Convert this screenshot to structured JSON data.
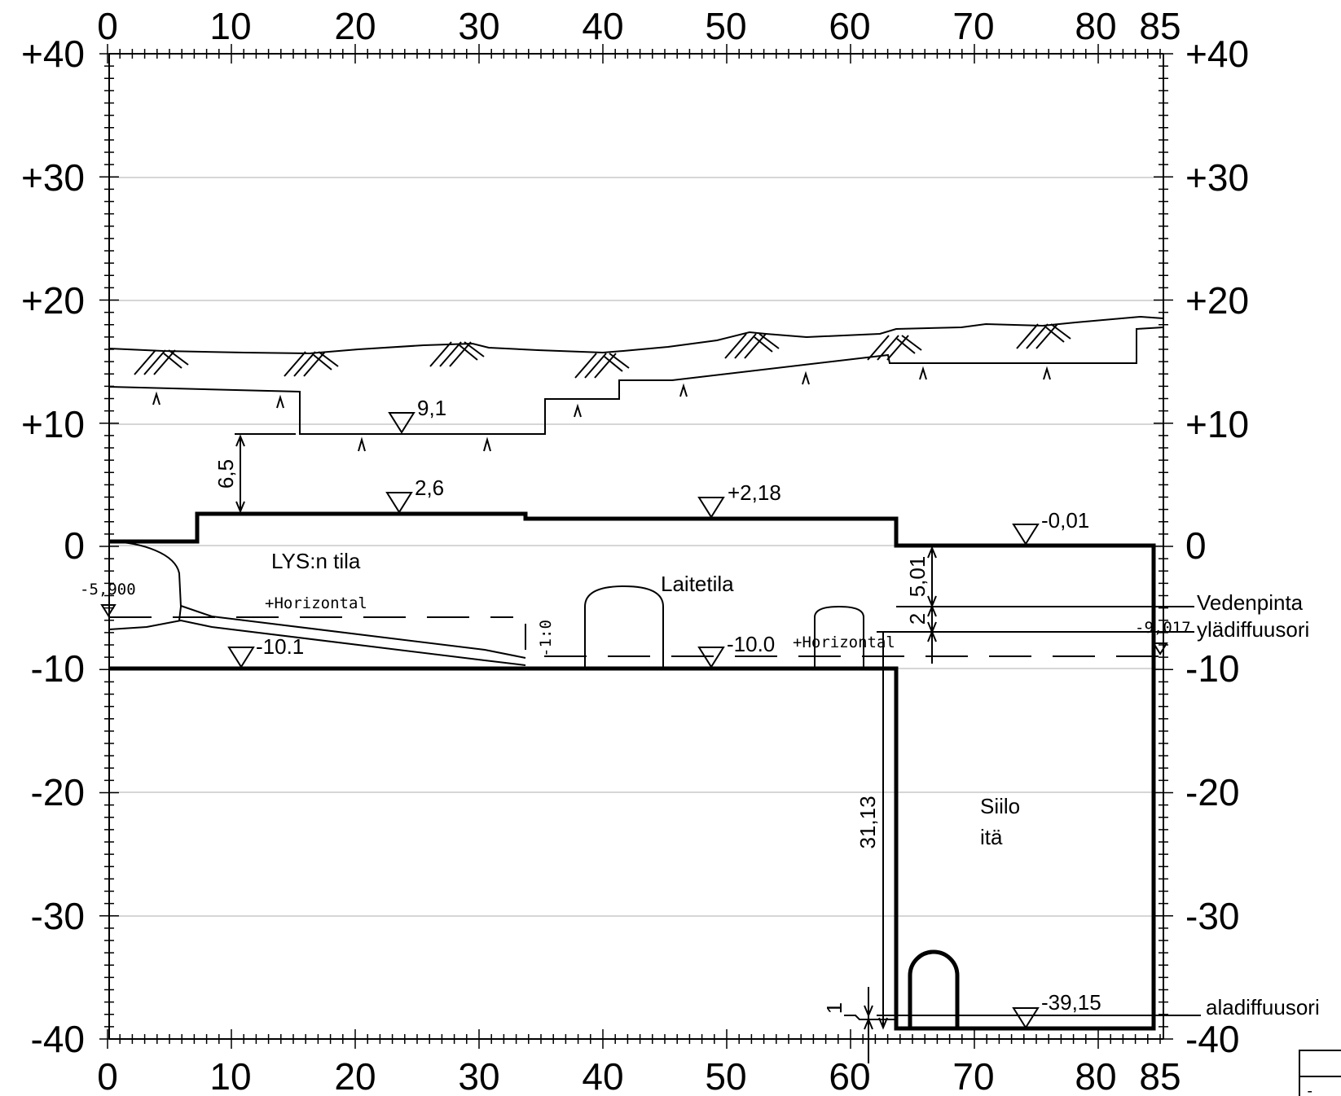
{
  "x_axis": {
    "ticks": [
      "0",
      "10",
      "20",
      "30",
      "40",
      "50",
      "60",
      "70",
      "80",
      "85"
    ]
  },
  "y_axis": {
    "ticks": [
      "+40",
      "+30",
      "+20",
      "+10",
      "0",
      "-10",
      "-20",
      "-30",
      "-40"
    ]
  },
  "spaces": {
    "lys": "LYS:n tila",
    "laitetila": "Laitetila",
    "siilo_line1": "Siilo",
    "siilo_line2": "itä"
  },
  "elevations": {
    "e91": "9,1",
    "e26": "2,6",
    "e218": "+2,18",
    "e001": "-0,01",
    "e101": "-10.1",
    "e100": "-10.0",
    "e3915": "-39,15",
    "e5900": "-5,900",
    "e9017": "-9,017"
  },
  "dimensions": {
    "d65": "6,5",
    "d501": "5,01",
    "d2": "2",
    "d3113": "31,13",
    "d1": "1",
    "d10": "-1:0"
  },
  "notes": {
    "horiz1": "+Horizontal",
    "horiz2": "+Horizontal"
  },
  "callouts": {
    "vedenpinta": "Vedenpinta",
    "yladiffuusori": "ylädiffuusori",
    "aladiffuusori": "aladiffuusori"
  },
  "corner_mark": "-"
}
